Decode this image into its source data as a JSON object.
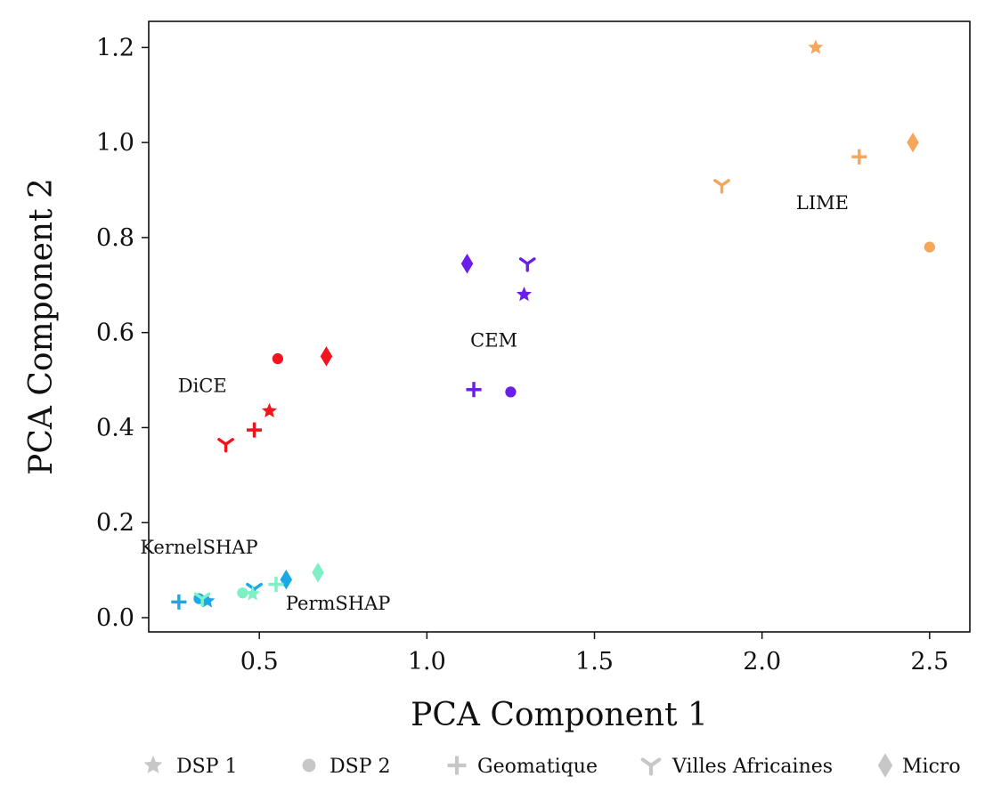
{
  "chart_data": {
    "type": "scatter",
    "xlabel": "PCA Component 1",
    "ylabel": "PCA Component 2",
    "xlim": [
      0.17,
      2.62
    ],
    "ylim": [
      -0.03,
      1.255
    ],
    "xticks": [
      0.5,
      1.0,
      1.5,
      2.0,
      2.5
    ],
    "xtick_labels": [
      "0.5",
      "1.0",
      "1.5",
      "2.0",
      "2.5"
    ],
    "yticks": [
      0.0,
      0.2,
      0.4,
      0.6,
      0.8,
      1.0,
      1.2
    ],
    "ytick_labels": [
      "0.0",
      "0.2",
      "0.4",
      "0.6",
      "0.8",
      "1.0",
      "1.2"
    ],
    "grid": false,
    "legend_position": "bottom",
    "legend": [
      {
        "label": "DSP 1",
        "marker": "star"
      },
      {
        "label": "DSP 2",
        "marker": "circle"
      },
      {
        "label": "Geomatique",
        "marker": "plus"
      },
      {
        "label": "Villes Africaines",
        "marker": "tri"
      },
      {
        "label": "Micro",
        "marker": "diamond"
      }
    ],
    "series": [
      {
        "name": "LIME",
        "color": "#f5a65b",
        "label_pos": [
          2.18,
          0.86
        ],
        "points": [
          {
            "dataset": "DSP 1",
            "x": 2.16,
            "y": 1.2
          },
          {
            "dataset": "DSP 2",
            "x": 2.5,
            "y": 0.78
          },
          {
            "dataset": "Geomatique",
            "x": 2.29,
            "y": 0.97
          },
          {
            "dataset": "Villes Africaines",
            "x": 1.88,
            "y": 0.91
          },
          {
            "dataset": "Micro",
            "x": 2.45,
            "y": 1.0
          }
        ]
      },
      {
        "name": "CEM",
        "color": "#6a1fe8",
        "label_pos": [
          1.2,
          0.57
        ],
        "points": [
          {
            "dataset": "DSP 1",
            "x": 1.29,
            "y": 0.68
          },
          {
            "dataset": "DSP 2",
            "x": 1.25,
            "y": 0.475
          },
          {
            "dataset": "Geomatique",
            "x": 1.14,
            "y": 0.48
          },
          {
            "dataset": "Villes Africaines",
            "x": 1.3,
            "y": 0.745
          },
          {
            "dataset": "Micro",
            "x": 1.12,
            "y": 0.745
          }
        ]
      },
      {
        "name": "DiCE",
        "color": "#f0141e",
        "label_pos": [
          0.33,
          0.475
        ],
        "points": [
          {
            "dataset": "DSP 1",
            "x": 0.53,
            "y": 0.435
          },
          {
            "dataset": "DSP 2",
            "x": 0.555,
            "y": 0.545
          },
          {
            "dataset": "Geomatique",
            "x": 0.485,
            "y": 0.395
          },
          {
            "dataset": "Villes Africaines",
            "x": 0.4,
            "y": 0.365
          },
          {
            "dataset": "Micro",
            "x": 0.7,
            "y": 0.55
          }
        ]
      },
      {
        "name": "KernelSHAP",
        "color": "#1aa9e6",
        "label_pos": [
          0.32,
          0.135
        ],
        "points": [
          {
            "dataset": "DSP 1",
            "x": 0.345,
            "y": 0.035
          },
          {
            "dataset": "DSP 2",
            "x": 0.32,
            "y": 0.04
          },
          {
            "dataset": "Geomatique",
            "x": 0.26,
            "y": 0.033
          },
          {
            "dataset": "Villes Africaines",
            "x": 0.485,
            "y": 0.06
          },
          {
            "dataset": "Micro",
            "x": 0.58,
            "y": 0.08
          }
        ]
      },
      {
        "name": "PermSHAP",
        "color": "#7ff0c6",
        "label_pos": [
          0.735,
          0.017
        ],
        "points": [
          {
            "dataset": "DSP 1",
            "x": 0.48,
            "y": 0.05
          },
          {
            "dataset": "DSP 2",
            "x": 0.45,
            "y": 0.052
          },
          {
            "dataset": "Geomatique",
            "x": 0.55,
            "y": 0.07
          },
          {
            "dataset": "Villes Africaines",
            "x": 0.33,
            "y": 0.04
          },
          {
            "dataset": "Micro",
            "x": 0.675,
            "y": 0.095
          }
        ]
      }
    ]
  }
}
